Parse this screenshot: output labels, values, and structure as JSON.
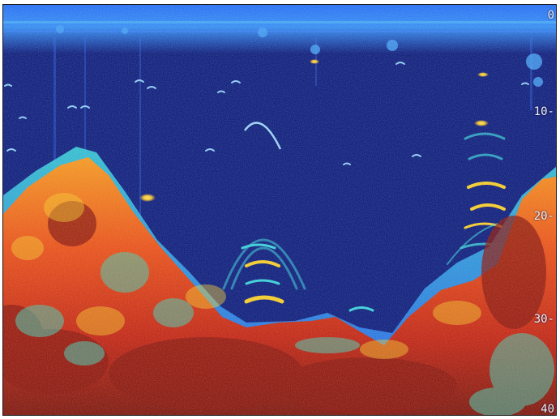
{
  "depth_scale": {
    "labels": [
      "0",
      "10-",
      "20-",
      "30-",
      "40"
    ]
  },
  "colors": {
    "water": "#00127a",
    "weak_return": "#1e5cff",
    "medium_return": "#2fd6e0",
    "strong_return": "#ffd21f",
    "bottom_hard": "#e0260c",
    "bottom_core": "#8a0b00"
  }
}
